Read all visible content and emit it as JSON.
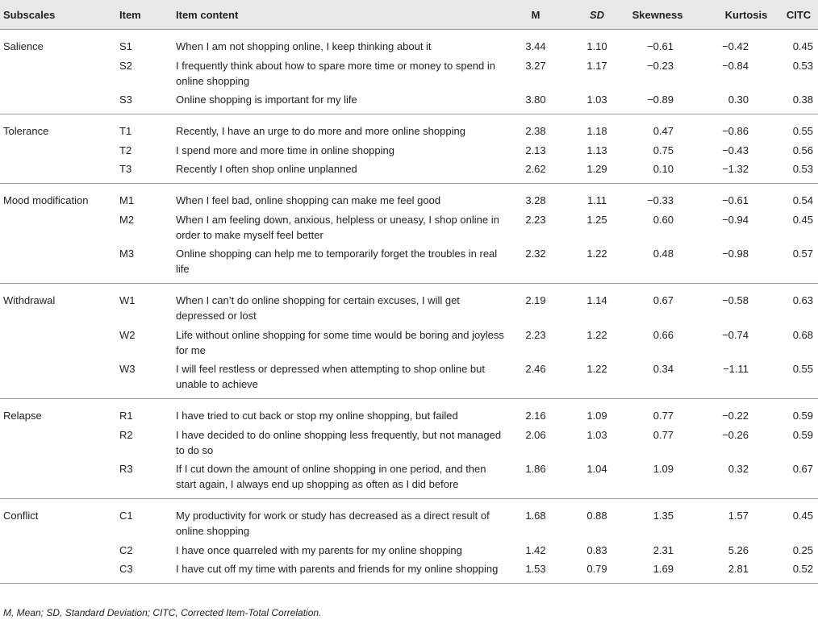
{
  "table": {
    "header": [
      "Subscales",
      "Item",
      "Item content",
      "M",
      "SD",
      "Skewness",
      "Kurtosis",
      "CITC"
    ],
    "groups": [
      {
        "name": "Salience",
        "rows": [
          [
            "S1",
            "When I am not shopping online, I keep thinking about it",
            "3.44",
            "1.10",
            "−0.61",
            "−0.42",
            "0.45"
          ],
          [
            "S2",
            "I frequently think about how to spare more time or money to spend in online shopping",
            "3.27",
            "1.17",
            "−0.23",
            "−0.84",
            "0.53"
          ],
          [
            "S3",
            "Online shopping is important for my life",
            "3.80",
            "1.03",
            "−0.89",
            "0.30",
            "0.38"
          ]
        ]
      },
      {
        "name": "Tolerance",
        "rows": [
          [
            "T1",
            "Recently, I have an urge to do more and more online shopping",
            "2.38",
            "1.18",
            "0.47",
            "−0.86",
            "0.55"
          ],
          [
            "T2",
            "I spend more and more time in online shopping",
            "2.13",
            "1.13",
            "0.75",
            "−0.43",
            "0.56"
          ],
          [
            "T3",
            "Recently I often shop online unplanned",
            "2.62",
            "1.29",
            "0.10",
            "−1.32",
            "0.53"
          ]
        ]
      },
      {
        "name": "Mood modification",
        "rows": [
          [
            "M1",
            "When I feel bad, online shopping can make me feel good",
            "3.28",
            "1.11",
            "−0.33",
            "−0.61",
            "0.54"
          ],
          [
            "M2",
            "When I am feeling down, anxious, helpless or uneasy, I shop online in order to make myself feel better",
            "2.23",
            "1.25",
            "0.60",
            "−0.94",
            "0.45"
          ],
          [
            "M3",
            "Online shopping can help me to temporarily forget the troubles in real life",
            "2.32",
            "1.22",
            "0.48",
            "−0.98",
            "0.57"
          ]
        ]
      },
      {
        "name": "Withdrawal",
        "rows": [
          [
            "W1",
            "When I can’t do online shopping for certain excuses, I will get depressed or lost",
            "2.19",
            "1.14",
            "0.67",
            "−0.58",
            "0.63"
          ],
          [
            "W2",
            "Life without online shopping for some time would be boring and joyless for me",
            "2.23",
            "1.22",
            "0.66",
            "−0.74",
            "0.68"
          ],
          [
            "W3",
            "I will feel restless or depressed when attempting to shop online but unable to achieve",
            "2.46",
            "1.22",
            "0.34",
            "−1.11",
            "0.55"
          ]
        ]
      },
      {
        "name": "Relapse",
        "rows": [
          [
            "R1",
            "I have tried to cut back or stop my online shopping, but failed",
            "2.16",
            "1.09",
            "0.77",
            "−0.22",
            "0.59"
          ],
          [
            "R2",
            "I have decided to do online shopping less frequently, but not managed to do so",
            "2.06",
            "1.03",
            "0.77",
            "−0.26",
            "0.59"
          ],
          [
            "R3",
            "If I cut down the amount of online shopping in one period, and then start again, I always end up shopping as often as I did before",
            "1.86",
            "1.04",
            "1.09",
            "0.32",
            "0.67"
          ]
        ]
      },
      {
        "name": "Conflict",
        "rows": [
          [
            "C1",
            "My productivity for work or study has decreased as a direct result of online shopping",
            "1.68",
            "0.88",
            "1.35",
            "1.57",
            "0.45"
          ],
          [
            "C2",
            "I have once quarreled with my parents for my online shopping",
            "1.42",
            "0.83",
            "2.31",
            "5.26",
            "0.25"
          ],
          [
            "C3",
            "I have cut off my time with parents and friends for my online shopping",
            "1.53",
            "0.79",
            "1.69",
            "2.81",
            "0.52"
          ]
        ]
      }
    ],
    "footnote": "M, Mean; SD, Standard Deviation; CITC, Corrected Item-Total Correlation."
  }
}
